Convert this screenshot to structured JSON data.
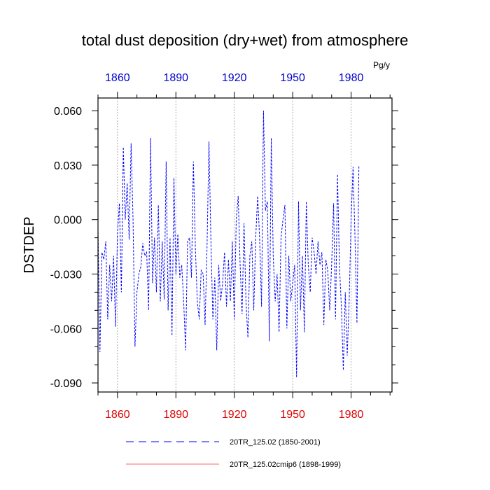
{
  "chart_data": {
    "type": "line",
    "title": "total dust deposition (dry+wet) from atmosphere",
    "ylabel": "DSTDEP",
    "units": "Pg/y",
    "xlabel": "",
    "xlim": [
      1850,
      2001
    ],
    "ylim": [
      -0.095,
      0.067
    ],
    "x_ticks": [
      "1860",
      "1890",
      "1920",
      "1950",
      "1980"
    ],
    "x_tick_values": [
      1860,
      1890,
      1920,
      1950,
      1980
    ],
    "y_ticks": [
      "0.060",
      "0.030",
      "0.000",
      "-0.030",
      "-0.060",
      "-0.090"
    ],
    "y_tick_values": [
      0.06,
      0.03,
      0.0,
      -0.03,
      -0.06,
      -0.09
    ],
    "grid": "vertical dotted at x ticks",
    "top_tick_color": "#0000cc",
    "bottom_tick_color": "#dd0000",
    "series": [
      {
        "name": "20TR_125.02 (1850-2001)",
        "color": "#0000ff",
        "style": "dashed",
        "x_start": 1850,
        "values": [
          -0.005,
          -0.073,
          -0.018,
          -0.022,
          -0.012,
          -0.055,
          -0.025,
          -0.045,
          -0.02,
          -0.059,
          -0.008,
          0.009,
          -0.04,
          0.04,
          0.0,
          0.02,
          -0.011,
          0.042,
          0.0,
          -0.07,
          -0.04,
          -0.03,
          -0.026,
          -0.013,
          -0.02,
          -0.018,
          -0.05,
          0.045,
          -0.035,
          -0.01,
          -0.04,
          0.008,
          -0.045,
          -0.012,
          -0.044,
          0.032,
          -0.05,
          -0.01,
          -0.064,
          0.023,
          -0.03,
          -0.008,
          -0.032,
          -0.025,
          -0.045,
          -0.072,
          -0.012,
          -0.01,
          -0.032,
          0.032,
          -0.015,
          -0.045,
          -0.055,
          -0.028,
          -0.03,
          -0.058,
          -0.015,
          0.043,
          -0.012,
          -0.055,
          -0.032,
          -0.072,
          -0.025,
          -0.045,
          -0.035,
          -0.018,
          -0.048,
          -0.022,
          -0.045,
          -0.012,
          -0.055,
          0.0,
          0.013,
          -0.025,
          -0.052,
          -0.002,
          -0.045,
          -0.065,
          -0.02,
          -0.012,
          -0.05,
          -0.01,
          0.013,
          -0.01,
          -0.048,
          0.06,
          0.005,
          0.01,
          -0.067,
          0.045,
          -0.02,
          -0.045,
          -0.03,
          -0.062,
          -0.01,
          0.0,
          0.008,
          -0.06,
          -0.02,
          -0.045,
          -0.035,
          -0.025,
          -0.087,
          0.01,
          -0.05,
          -0.02,
          -0.062,
          0.01,
          -0.025,
          -0.04,
          -0.01,
          -0.018,
          -0.03,
          -0.012,
          -0.025,
          -0.018,
          -0.058,
          -0.022,
          -0.028,
          -0.05,
          -0.025,
          0.009,
          -0.055,
          0.025,
          -0.025,
          -0.048,
          -0.083,
          -0.04,
          -0.075,
          -0.045,
          0.0,
          0.029,
          -0.01,
          -0.057,
          0.03
        ]
      },
      {
        "name": "20TR_125.02cmip6 (1898-1999)",
        "color": "#ff6666",
        "style": "solid",
        "values": []
      }
    ],
    "legend_position": "bottom"
  }
}
